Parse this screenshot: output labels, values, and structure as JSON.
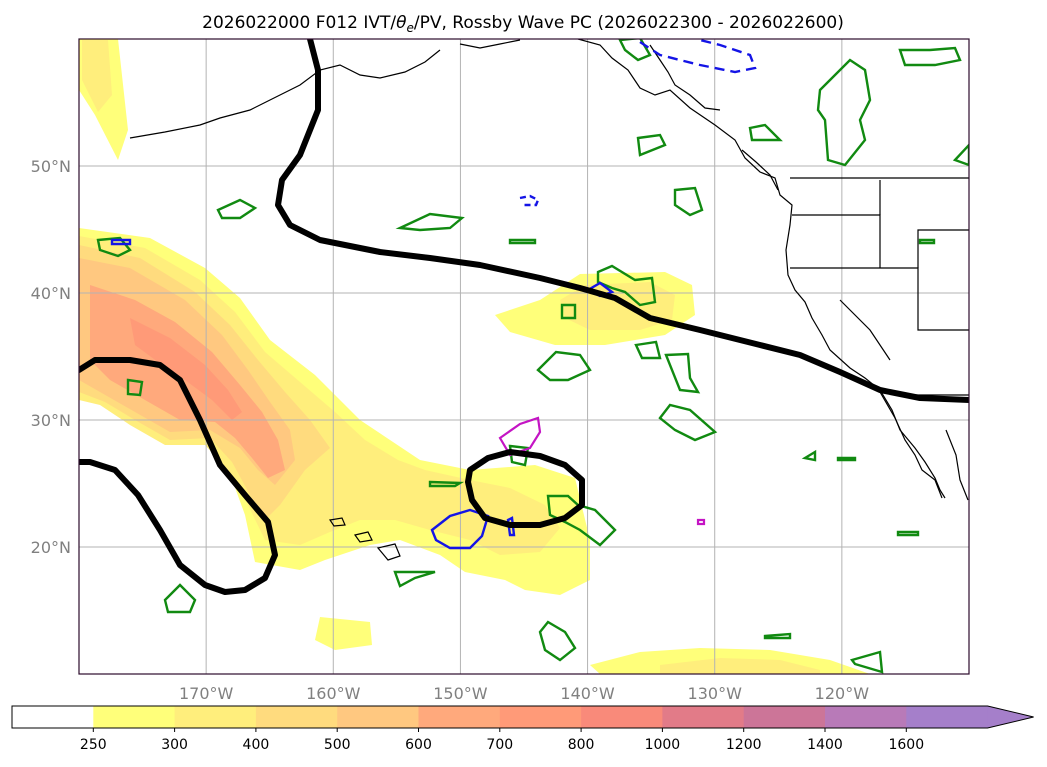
{
  "chart_data": {
    "type": "map",
    "title_prefix": "2026022000 F012 IVT/",
    "title_theta": "θ",
    "title_theta_sub": "e",
    "title_suffix": "/PV, Rossby Wave PC (2026022300 - 2026022600)",
    "lon_range": [
      180,
      110
    ],
    "lat_range": [
      10,
      60
    ],
    "lon_ticks": [
      {
        "lon": 170,
        "label": "170°W"
      },
      {
        "lon": 160,
        "label": "160°W"
      },
      {
        "lon": 150,
        "label": "150°W"
      },
      {
        "lon": 140,
        "label": "140°W"
      },
      {
        "lon": 130,
        "label": "130°W"
      },
      {
        "lon": 120,
        "label": "120°W"
      }
    ],
    "lat_ticks": [
      {
        "lat": 50,
        "label": "50°N"
      },
      {
        "lat": 40,
        "label": "40°N"
      },
      {
        "lat": 30,
        "label": "30°N"
      },
      {
        "lat": 20,
        "label": "20°N"
      }
    ],
    "colorbar": {
      "levels": [
        "250",
        "300",
        "400",
        "500",
        "600",
        "700",
        "800",
        "1000",
        "1200",
        "1400",
        "1600"
      ],
      "colors": [
        "#ffffff",
        "#ffff7a",
        "#ffee7c",
        "#ffdb7e",
        "#ffc880",
        "#ffa97c",
        "#ff9a78",
        "#f98a7a",
        "#e27b88",
        "#cc7598",
        "#b87ab8",
        "#a57fca"
      ],
      "extend": "max"
    },
    "colors": {
      "pv_contour": "#000000",
      "green_cells": "#118a11",
      "blue_contour": "#1414e6",
      "magenta_contour": "#c414c4",
      "grid": "#b3b3b3",
      "axes_frame": "#2b0a2b"
    }
  }
}
